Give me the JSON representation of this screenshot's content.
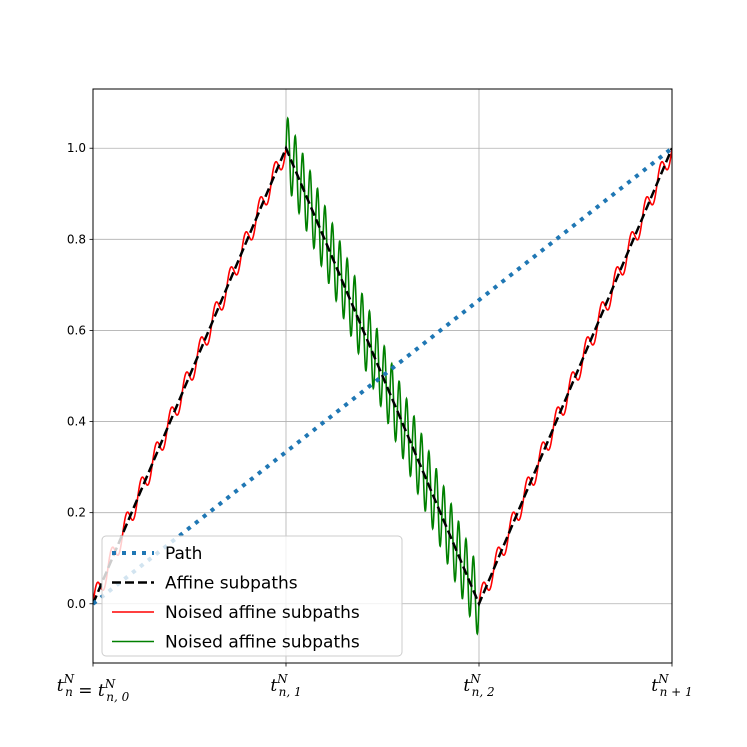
{
  "chart_data": {
    "type": "line",
    "title": "",
    "xlabel": "",
    "ylabel": "",
    "xlim": [
      0,
      3
    ],
    "ylim": [
      -0.13,
      1.13
    ],
    "grid": true,
    "legend_placement": "lower-left",
    "x_ticks": [
      {
        "value": 0,
        "main": "t",
        "sup": "N",
        "sub": "n",
        "eq_sub": "n, 0"
      },
      {
        "value": 1,
        "main": "t",
        "sup": "N",
        "sub": "n, 1"
      },
      {
        "value": 2,
        "main": "t",
        "sup": "N",
        "sub": "n, 2"
      },
      {
        "value": 3,
        "main": "t",
        "sup": "N",
        "sub": "n + 1"
      }
    ],
    "y_ticks": [
      0.0,
      0.2,
      0.4,
      0.6,
      0.8,
      1.0
    ],
    "y_tick_labels": [
      "0.0",
      "0.2",
      "0.4",
      "0.6",
      "0.8",
      "1.0"
    ],
    "series": [
      {
        "name": "Path",
        "style": "dotted",
        "color": "#1f77b4",
        "x": [
          0,
          3
        ],
        "y": [
          0,
          1
        ]
      },
      {
        "name": "Affine subpaths",
        "style": "dashed",
        "color": "#000000",
        "x": [
          0,
          1,
          2,
          3
        ],
        "y": [
          0,
          1,
          0,
          1
        ]
      },
      {
        "name": "Noised affine subpaths",
        "style": "solid",
        "color": "#ff0000",
        "segments": [
          {
            "x": [
              0,
              1
            ],
            "y": [
              0,
              1
            ]
          },
          {
            "x": [
              2,
              3
            ],
            "y": [
              0,
              1
            ]
          }
        ],
        "oscillation_amplitude": 0.025,
        "oscillation_cycles": 13
      },
      {
        "name": "Noised affine subpaths",
        "style": "solid",
        "color": "#008000",
        "segments": [
          {
            "x": [
              1,
              2
            ],
            "y": [
              1,
              0
            ]
          }
        ],
        "oscillation_amplitude": 0.075,
        "oscillation_cycles": 26
      }
    ]
  }
}
